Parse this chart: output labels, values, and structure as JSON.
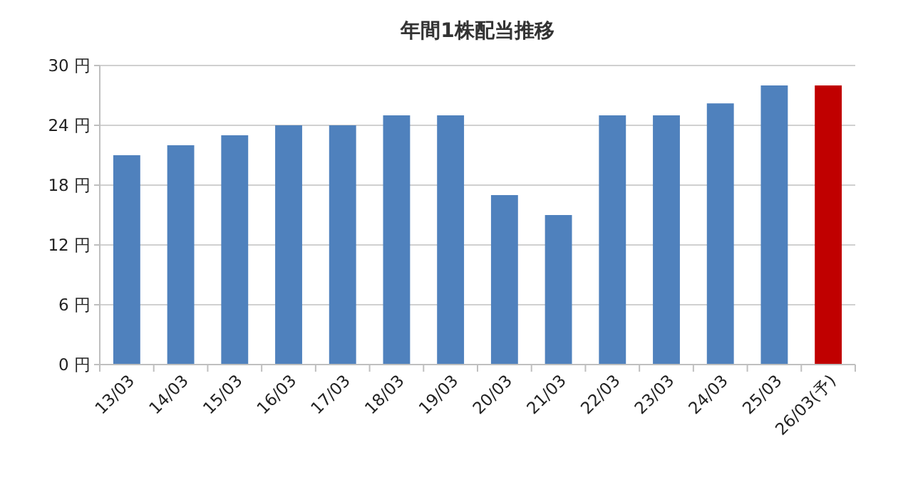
{
  "chart_data": {
    "type": "bar",
    "title": "年間1株配当推移",
    "categories": [
      "13/03",
      "14/03",
      "15/03",
      "16/03",
      "17/03",
      "18/03",
      "19/03",
      "20/03",
      "21/03",
      "22/03",
      "23/03",
      "24/03",
      "25/03",
      "26/03(予)"
    ],
    "values": [
      21,
      22,
      23,
      24,
      24,
      25,
      25,
      17,
      15,
      25,
      25,
      26.2,
      28,
      28
    ],
    "colors": [
      "#4f81bd",
      "#4f81bd",
      "#4f81bd",
      "#4f81bd",
      "#4f81bd",
      "#4f81bd",
      "#4f81bd",
      "#4f81bd",
      "#4f81bd",
      "#4f81bd",
      "#4f81bd",
      "#4f81bd",
      "#4f81bd",
      "#c00000"
    ],
    "ylim": [
      0,
      30
    ],
    "yticks": [
      {
        "value": 0,
        "label": "0 円"
      },
      {
        "value": 6,
        "label": "6 円"
      },
      {
        "value": 12,
        "label": "12 円"
      },
      {
        "value": 18,
        "label": "18 円"
      },
      {
        "value": 24,
        "label": "24 円"
      },
      {
        "value": 30,
        "label": "30 円"
      }
    ],
    "grid": "y"
  }
}
